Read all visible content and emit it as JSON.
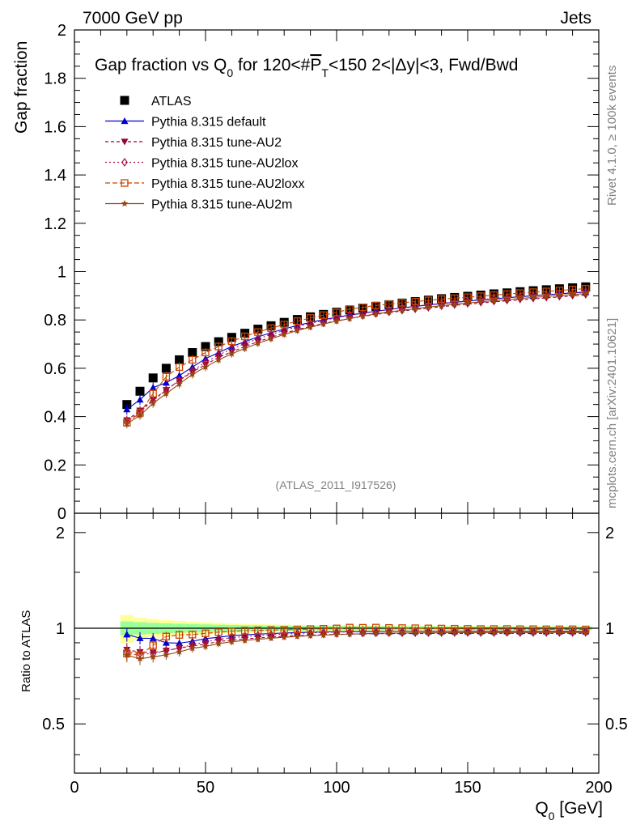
{
  "header": {
    "left": "7000 GeV pp",
    "right": "Jets"
  },
  "side_labels": {
    "top": "Rivet 4.1.0, ≥ 100k events",
    "bottom": "mcplots.cern.ch [arXiv:2401.10621]"
  },
  "colors": {
    "atlas": "#000000",
    "default": "#0000cc",
    "au2": "#990033",
    "au2lox": "#aa1144",
    "au2loxx": "#cc4400",
    "au2m": "#994411",
    "band_yellow": "#ffff99",
    "band_green": "#99ff99"
  },
  "chart_data": {
    "type": "scatter",
    "title": "Gap fraction vs Q0 for 120<#PT<150  2<|Δy|<3, Fwd/Bwd",
    "title_parts": {
      "a": "Gap fraction vs Q",
      "sub0": "0",
      "b": " for 120<#",
      "over": "P",
      "subT": "T",
      "c": "<150  2<|Δy|<3, Fwd/Bwd"
    },
    "xlabel": "Q",
    "xlabel_sub": "0",
    "xlabel_unit": " [GeV]",
    "ylabel": "Gap fraction",
    "ratio_ylabel": "Ratio to ATLAS",
    "watermark": "(ATLAS_2011_I917526)",
    "xlim": [
      0,
      200
    ],
    "ylim": [
      0,
      2
    ],
    "ratio_ylim": [
      0.35,
      2.3
    ],
    "xticks": [
      "0",
      "50",
      "100",
      "150",
      "200"
    ],
    "yticks": [
      "0",
      "0.2",
      "0.4",
      "0.6",
      "0.8",
      "1",
      "1.2",
      "1.4",
      "1.6",
      "1.8",
      "2"
    ],
    "ratio_yticks": [
      "0.5",
      "1",
      "2"
    ],
    "x": [
      20,
      25,
      30,
      35,
      40,
      45,
      50,
      55,
      60,
      65,
      70,
      75,
      80,
      85,
      90,
      95,
      100,
      105,
      110,
      115,
      120,
      125,
      130,
      135,
      140,
      145,
      150,
      155,
      160,
      165,
      170,
      175,
      180,
      185,
      190,
      195
    ],
    "series": [
      {
        "name": "ATLAS",
        "key": "atlas",
        "marker": "square",
        "values": [
          0.45,
          0.505,
          0.56,
          0.6,
          0.635,
          0.665,
          0.69,
          0.71,
          0.728,
          0.745,
          0.762,
          0.776,
          0.79,
          0.802,
          0.813,
          0.823,
          0.832,
          0.841,
          0.849,
          0.856,
          0.863,
          0.87,
          0.876,
          0.882,
          0.888,
          0.893,
          0.898,
          0.903,
          0.908,
          0.912,
          0.917,
          0.921,
          0.925,
          0.929,
          0.933,
          0.937
        ]
      },
      {
        "name": "Pythia 8.315 default",
        "key": "default",
        "marker": "triangle-up",
        "values": [
          0.43,
          0.47,
          0.52,
          0.54,
          0.57,
          0.605,
          0.64,
          0.665,
          0.69,
          0.71,
          0.73,
          0.747,
          0.763,
          0.777,
          0.79,
          0.801,
          0.811,
          0.82,
          0.828,
          0.836,
          0.843,
          0.85,
          0.856,
          0.862,
          0.868,
          0.873,
          0.878,
          0.883,
          0.887,
          0.892,
          0.896,
          0.9,
          0.904,
          0.908,
          0.912,
          0.915
        ]
      },
      {
        "name": "Pythia 8.315 tune-AU2",
        "key": "au2",
        "marker": "triangle-down",
        "values": [
          0.385,
          0.425,
          0.47,
          0.51,
          0.55,
          0.585,
          0.615,
          0.645,
          0.668,
          0.69,
          0.71,
          0.728,
          0.745,
          0.76,
          0.773,
          0.785,
          0.796,
          0.806,
          0.815,
          0.823,
          0.83,
          0.837,
          0.843,
          0.849,
          0.855,
          0.86,
          0.865,
          0.87,
          0.875,
          0.879,
          0.883,
          0.887,
          0.891,
          0.895,
          0.899,
          0.903
        ]
      },
      {
        "name": "Pythia 8.315 tune-AU2lox",
        "key": "au2lox",
        "marker": "diamond-open",
        "values": [
          0.38,
          0.42,
          0.465,
          0.51,
          0.55,
          0.59,
          0.625,
          0.655,
          0.68,
          0.702,
          0.722,
          0.74,
          0.757,
          0.772,
          0.786,
          0.798,
          0.809,
          0.819,
          0.828,
          0.836,
          0.843,
          0.85,
          0.857,
          0.863,
          0.869,
          0.874,
          0.879,
          0.884,
          0.889,
          0.893,
          0.897,
          0.901,
          0.905,
          0.909,
          0.913,
          0.917
        ]
      },
      {
        "name": "Pythia 8.315 tune-AU2loxx",
        "key": "au2loxx",
        "marker": "square-open",
        "values": [
          0.375,
          0.415,
          0.495,
          0.565,
          0.605,
          0.635,
          0.665,
          0.69,
          0.712,
          0.732,
          0.75,
          0.766,
          0.781,
          0.795,
          0.808,
          0.82,
          0.831,
          0.845,
          0.852,
          0.86,
          0.865,
          0.871,
          0.876,
          0.881,
          0.886,
          0.89,
          0.894,
          0.898,
          0.903,
          0.907,
          0.911,
          0.915,
          0.918,
          0.922,
          0.926,
          0.929
        ]
      },
      {
        "name": "Pythia 8.315 tune-AU2m",
        "key": "au2m",
        "marker": "star",
        "values": [
          0.37,
          0.405,
          0.455,
          0.495,
          0.535,
          0.575,
          0.605,
          0.635,
          0.66,
          0.682,
          0.703,
          0.722,
          0.74,
          0.756,
          0.77,
          0.783,
          0.795,
          0.806,
          0.816,
          0.825,
          0.833,
          0.84,
          0.847,
          0.853,
          0.859,
          0.865,
          0.87,
          0.875,
          0.88,
          0.884,
          0.889,
          0.893,
          0.897,
          0.901,
          0.905,
          0.909
        ]
      }
    ],
    "data_rel_error": [
      0.1,
      0.08,
      0.07,
      0.06,
      0.055,
      0.05,
      0.045,
      0.04,
      0.035,
      0.032,
      0.03,
      0.028,
      0.026,
      0.025,
      0.024,
      0.023,
      0.022,
      0.021,
      0.021,
      0.02,
      0.02,
      0.019,
      0.019,
      0.018,
      0.018,
      0.018,
      0.017,
      0.017,
      0.017,
      0.016,
      0.016,
      0.016,
      0.016,
      0.015,
      0.015,
      0.015
    ],
    "mc_rel_error": [
      0.05,
      0.045,
      0.04,
      0.036,
      0.033,
      0.03,
      0.028,
      0.026,
      0.024,
      0.022,
      0.021,
      0.02,
      0.019,
      0.018,
      0.017,
      0.017,
      0.016,
      0.016,
      0.015,
      0.015,
      0.015,
      0.014,
      0.014,
      0.014,
      0.014,
      0.013,
      0.013,
      0.013,
      0.013,
      0.013,
      0.013,
      0.012,
      0.012,
      0.012,
      0.012,
      0.012
    ]
  }
}
